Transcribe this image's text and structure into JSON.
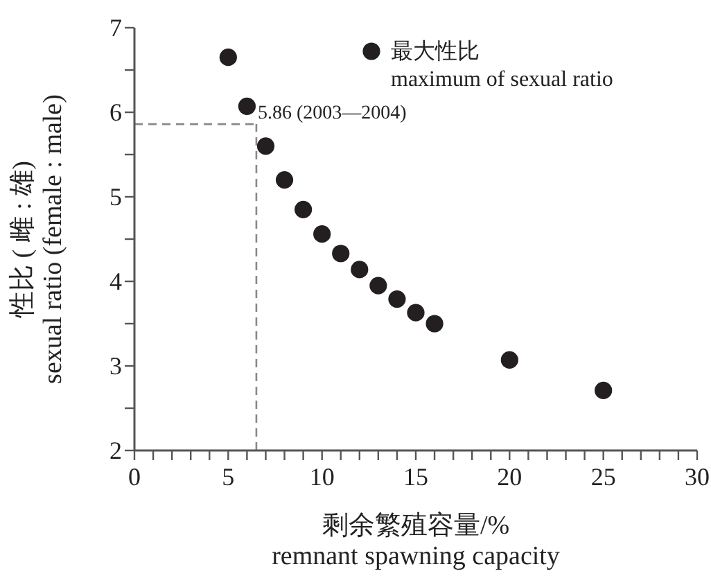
{
  "chart_data": {
    "type": "scatter",
    "xlabel": "剩余繁殖容量/%\nremnant spawning capacity",
    "ylabel": "性比 ( 雌 : 雄)\nsexual ratio (female : male)",
    "x": [
      5,
      6,
      7,
      8,
      9,
      10,
      11,
      12,
      13,
      14,
      15,
      16,
      20,
      25
    ],
    "series": [
      {
        "name": "最大性比\nmaximum of sexual ratio",
        "color": "#231f20",
        "values": [
          6.65,
          6.07,
          5.6,
          5.2,
          4.85,
          4.56,
          4.33,
          4.14,
          3.95,
          3.79,
          3.63,
          3.5,
          3.07,
          2.71
        ]
      }
    ],
    "xlim": [
      0,
      30
    ],
    "xticks": [
      0,
      {
        "value": 1,
        "label": null
      },
      {
        "value": 2,
        "label": null
      },
      {
        "value": 3,
        "label": null
      },
      {
        "value": 4,
        "label": null
      },
      5,
      {
        "value": 6,
        "label": null
      },
      {
        "value": 7,
        "label": null
      },
      {
        "value": 8,
        "label": null
      },
      {
        "value": 9,
        "label": null
      },
      10,
      {
        "value": 11,
        "label": null
      },
      {
        "value": 12,
        "label": null
      },
      {
        "value": 13,
        "label": null
      },
      {
        "value": 14,
        "label": null
      },
      15,
      {
        "value": 16,
        "label": null
      },
      {
        "value": 17,
        "label": null
      },
      {
        "value": 18,
        "label": null
      },
      {
        "value": 19,
        "label": null
      },
      20,
      {
        "value": 21,
        "label": null
      },
      {
        "value": 22,
        "label": null
      },
      {
        "value": 23,
        "label": null
      },
      {
        "value": 24,
        "label": null
      },
      25,
      {
        "value": 26,
        "label": null
      },
      {
        "value": 27,
        "label": null
      },
      {
        "value": 28,
        "label": null
      },
      {
        "value": 29,
        "label": null
      },
      30
    ],
    "ylim": [
      2,
      7
    ],
    "yticks": [
      2,
      {
        "value": 2.5,
        "label": null
      },
      3,
      {
        "value": 3.5,
        "label": null
      },
      4,
      {
        "value": 4.5,
        "label": null
      },
      5,
      {
        "value": 5.5,
        "label": null
      },
      6,
      {
        "value": 6.5,
        "label": null
      },
      7
    ],
    "ref_lines": [
      {
        "axis": "y",
        "value": 5.86,
        "label": "5.86 (2003—2004)",
        "color": "#888888",
        "line_style": "dashed"
      },
      {
        "axis": "x",
        "value": 6.5,
        "color": "#888888",
        "line_style": "dashed"
      }
    ],
    "marker": "circle",
    "legend": "top right",
    "grid": false
  }
}
